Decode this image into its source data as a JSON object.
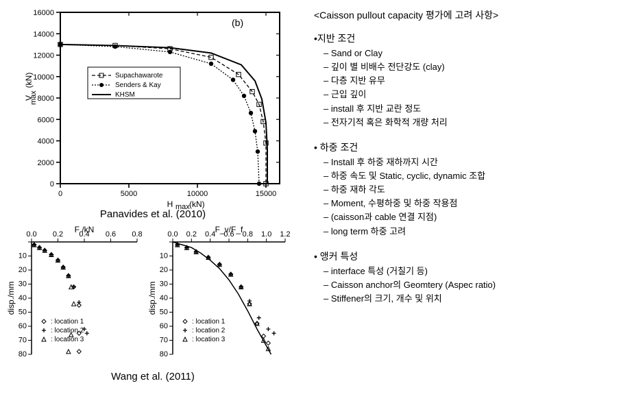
{
  "top_chart": {
    "type": "line",
    "corner_label": "(b)",
    "xlabel": "H_max (kN)",
    "ylabel": "V_max (kN)",
    "xlim": [
      0,
      16000
    ],
    "ylim": [
      0,
      16000
    ],
    "xtick_step": 5000,
    "ytick_step": 2000,
    "xticks": [
      0,
      5000,
      10000,
      15000
    ],
    "yticks": [
      0,
      2000,
      4000,
      6000,
      8000,
      10000,
      12000,
      14000,
      16000
    ],
    "grid_color": "#000000",
    "background_color": "#ffffff",
    "axis_linewidth": 2,
    "tick_fontsize": 11,
    "label_fontsize": 12,
    "series": [
      {
        "name": "Supachawarote",
        "marker": "square-open",
        "line_dash": "5,3",
        "color": "#000000",
        "x": [
          0,
          4000,
          8000,
          11000,
          13000,
          14000,
          14500,
          14800,
          15000,
          15000
        ],
        "y": [
          13000,
          12900,
          12600,
          11800,
          10200,
          8600,
          7400,
          5800,
          3800,
          0
        ]
      },
      {
        "name": "Senders & Kay",
        "marker": "circle-filled",
        "line_dash": "2,2",
        "color": "#000000",
        "x": [
          0,
          4000,
          8000,
          11000,
          12600,
          13400,
          13900,
          14200,
          14400,
          14500
        ],
        "y": [
          13000,
          12800,
          12300,
          11200,
          9700,
          8200,
          6600,
          4900,
          3000,
          0
        ]
      },
      {
        "name": "KHSM",
        "marker": "none",
        "line_dash": "none",
        "color": "#000000",
        "line_width": 2,
        "x": [
          0,
          4000,
          8000,
          11000,
          13200,
          14200,
          14700,
          15000,
          15100,
          15100
        ],
        "y": [
          13000,
          12900,
          12700,
          12200,
          11100,
          9600,
          7900,
          5700,
          3200,
          0
        ]
      }
    ],
    "legend": {
      "position_xy": [
        90,
        40
      ],
      "box_color": "#000000",
      "items": [
        "Supachawarote",
        "Senders & Kay",
        "KHSM"
      ]
    }
  },
  "caption_top": "Panavides et al. (2010)",
  "bottom_left_chart": {
    "type": "scatter",
    "xlabel": "F /kN",
    "ylabel": "disp./mm",
    "xlim": [
      0.0,
      0.8
    ],
    "ylim_inverted": [
      0,
      80
    ],
    "xticks": [
      0.0,
      0.2,
      0.4,
      0.6,
      0.8
    ],
    "yticks": [
      0,
      10,
      20,
      30,
      40,
      50,
      60,
      70,
      80
    ],
    "tick_fontsize": 10,
    "label_fontsize": 11,
    "axis_linewidth": 1.5,
    "series": [
      {
        "name": "location 1",
        "marker": "diamond-open",
        "color": "#000000",
        "x": [
          0.02,
          0.06,
          0.1,
          0.15,
          0.2,
          0.24,
          0.28,
          0.32,
          0.36,
          0.36,
          0.36
        ],
        "y": [
          2,
          4,
          6,
          9,
          13,
          18,
          24,
          32,
          45,
          65,
          78
        ]
      },
      {
        "name": "location 2",
        "marker": "plus",
        "color": "#000000",
        "x": [
          0.02,
          0.06,
          0.1,
          0.15,
          0.2,
          0.24,
          0.28,
          0.32,
          0.36,
          0.4,
          0.42
        ],
        "y": [
          2,
          4,
          6,
          9,
          13,
          18,
          24,
          32,
          43,
          62,
          65
        ]
      },
      {
        "name": "location 3",
        "marker": "triangle-open",
        "color": "#000000",
        "x": [
          0.02,
          0.06,
          0.1,
          0.15,
          0.2,
          0.24,
          0.28,
          0.3,
          0.32,
          0.3,
          0.28
        ],
        "y": [
          2,
          4,
          6,
          9,
          13,
          18,
          24,
          32,
          44,
          66,
          78
        ]
      }
    ],
    "legend_items": [
      "location 1",
      "location 2",
      "location 3"
    ]
  },
  "bottom_right_chart": {
    "type": "scatter-line",
    "xlabel": "F_v/F_f",
    "ylabel": "disp./mm",
    "xlim": [
      0.0,
      1.2
    ],
    "ylim_inverted": [
      0,
      80
    ],
    "xticks": [
      0.0,
      0.2,
      0.4,
      0.6,
      0.8,
      1.0,
      1.2
    ],
    "yticks": [
      0,
      10,
      20,
      30,
      40,
      50,
      60,
      70,
      80
    ],
    "tick_fontsize": 10,
    "label_fontsize": 11,
    "series": [
      {
        "name": "location 1",
        "marker": "diamond-open",
        "color": "#000000",
        "x": [
          0.05,
          0.15,
          0.25,
          0.38,
          0.5,
          0.62,
          0.73,
          0.82,
          0.9,
          0.97,
          1.02
        ],
        "y": [
          2,
          4,
          7,
          11,
          16,
          23,
          32,
          44,
          58,
          67,
          72
        ]
      },
      {
        "name": "location 2",
        "marker": "plus",
        "color": "#000000",
        "x": [
          0.05,
          0.15,
          0.25,
          0.38,
          0.5,
          0.62,
          0.73,
          0.82,
          0.92,
          1.02,
          1.08
        ],
        "y": [
          2,
          4,
          7,
          11,
          16,
          23,
          32,
          42,
          54,
          62,
          65
        ]
      },
      {
        "name": "location 3",
        "marker": "triangle-open",
        "color": "#000000",
        "x": [
          0.05,
          0.15,
          0.25,
          0.38,
          0.5,
          0.62,
          0.73,
          0.82,
          0.9,
          0.97,
          1.02
        ],
        "y": [
          2,
          4,
          7,
          11,
          16,
          23,
          32,
          44,
          58,
          70,
          76
        ]
      }
    ],
    "fit_curve": {
      "color": "#000000",
      "line_width": 1.5,
      "x": [
        0.0,
        0.1,
        0.2,
        0.3,
        0.4,
        0.5,
        0.6,
        0.7,
        0.8,
        0.9,
        1.0,
        1.05
      ],
      "y": [
        0,
        2,
        4,
        8,
        13,
        19,
        27,
        37,
        49,
        62,
        74,
        80
      ]
    },
    "legend_items": [
      "location 1",
      "location 2",
      "location 3"
    ]
  },
  "caption_bottom": "Wang et al. (2011)",
  "right_panel": {
    "heading": "<Caisson pullout capacity 평가에 고려 사항>",
    "sections": [
      {
        "title": "•지반 조건",
        "items": [
          "Sand or Clay",
          "깊이 별 비배수 전단강도 (clay)",
          "다층 지반 유무",
          "근입 깊이",
          "install 후 지반 교란 정도",
          "전자기적 혹은 화학적 개량 처리"
        ]
      },
      {
        "title": "• 하중 조건",
        "items": [
          "Install 후 하중 재하까지 시간",
          "하중 속도 및 Static, cyclic, dynamic 조합",
          "하중 재하 각도",
          "Moment, 수평하중 및 하중 작용점",
          "(caisson과 cable 연결 지점)",
          "long term 하중 고려"
        ]
      },
      {
        "title": "• 앵커 특성",
        "items": [
          "interface 특성 (거칠기 등)",
          "Caisson anchor의 Geomtery (Aspec ratio)",
          "Stiffener의 크기, 개수 및 위치"
        ]
      }
    ]
  }
}
